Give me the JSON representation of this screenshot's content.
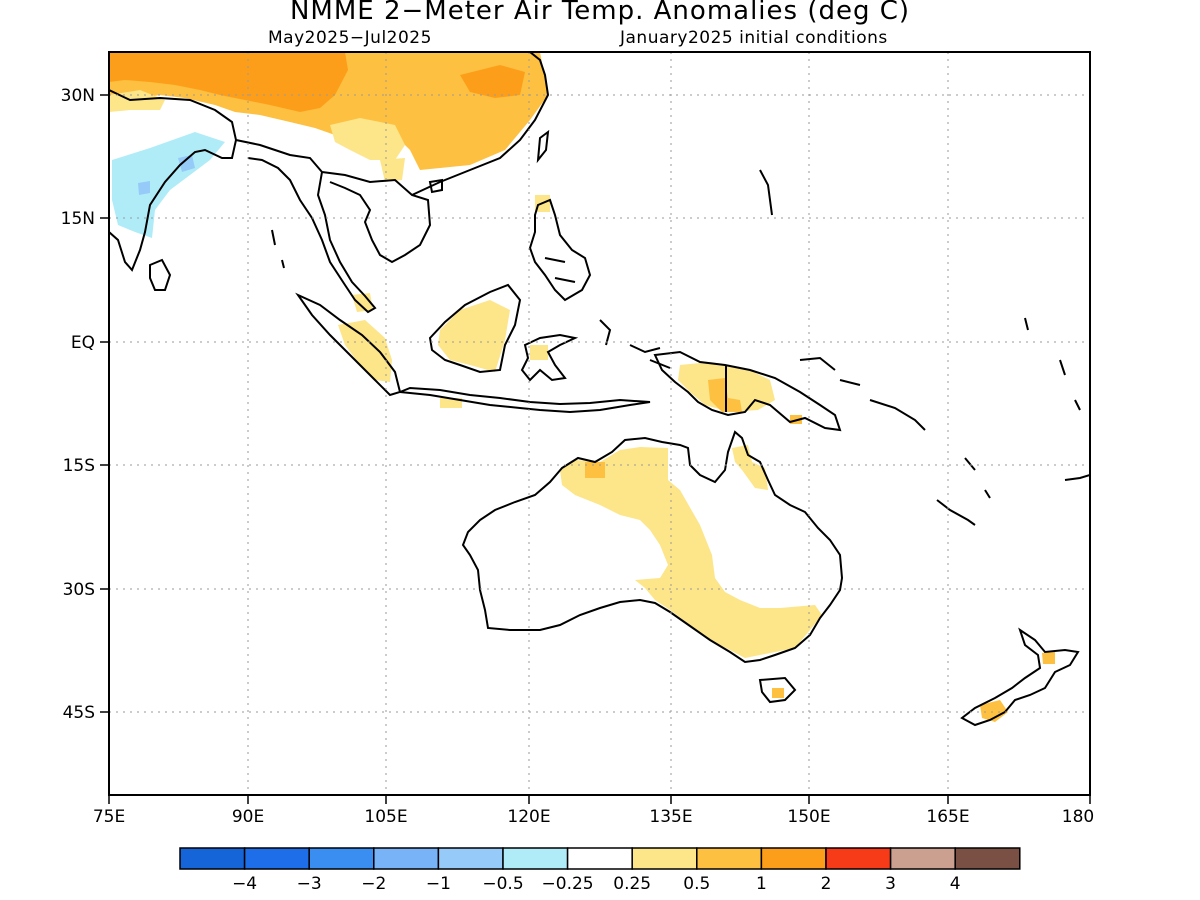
{
  "title": "NMME 2−Meter Air Temp. Anomalies (deg C)",
  "subtitle_left": "May2025−Jul2025",
  "subtitle_right": "January2025 initial conditions",
  "lat_labels": [
    "30N",
    "15N",
    "EQ",
    "15S",
    "30S",
    "45S"
  ],
  "lon_labels": [
    "75E",
    "90E",
    "105E",
    "120E",
    "135E",
    "150E",
    "165E",
    "180"
  ],
  "colorbar": {
    "colors": [
      "#1565d8",
      "#1e6ee9",
      "#3a8ef2",
      "#78b3f7",
      "#96caf8",
      "#b0ecf8",
      "#ffffff",
      "#fde58a",
      "#fdc040",
      "#fd9e1a",
      "#f73b18",
      "#cba091",
      "#7a5044"
    ],
    "labels": [
      "−4",
      "−3",
      "−2",
      "−1",
      "−0.5",
      "−0.25",
      "0.25",
      "0.5",
      "1",
      "2",
      "3",
      "4"
    ]
  }
}
